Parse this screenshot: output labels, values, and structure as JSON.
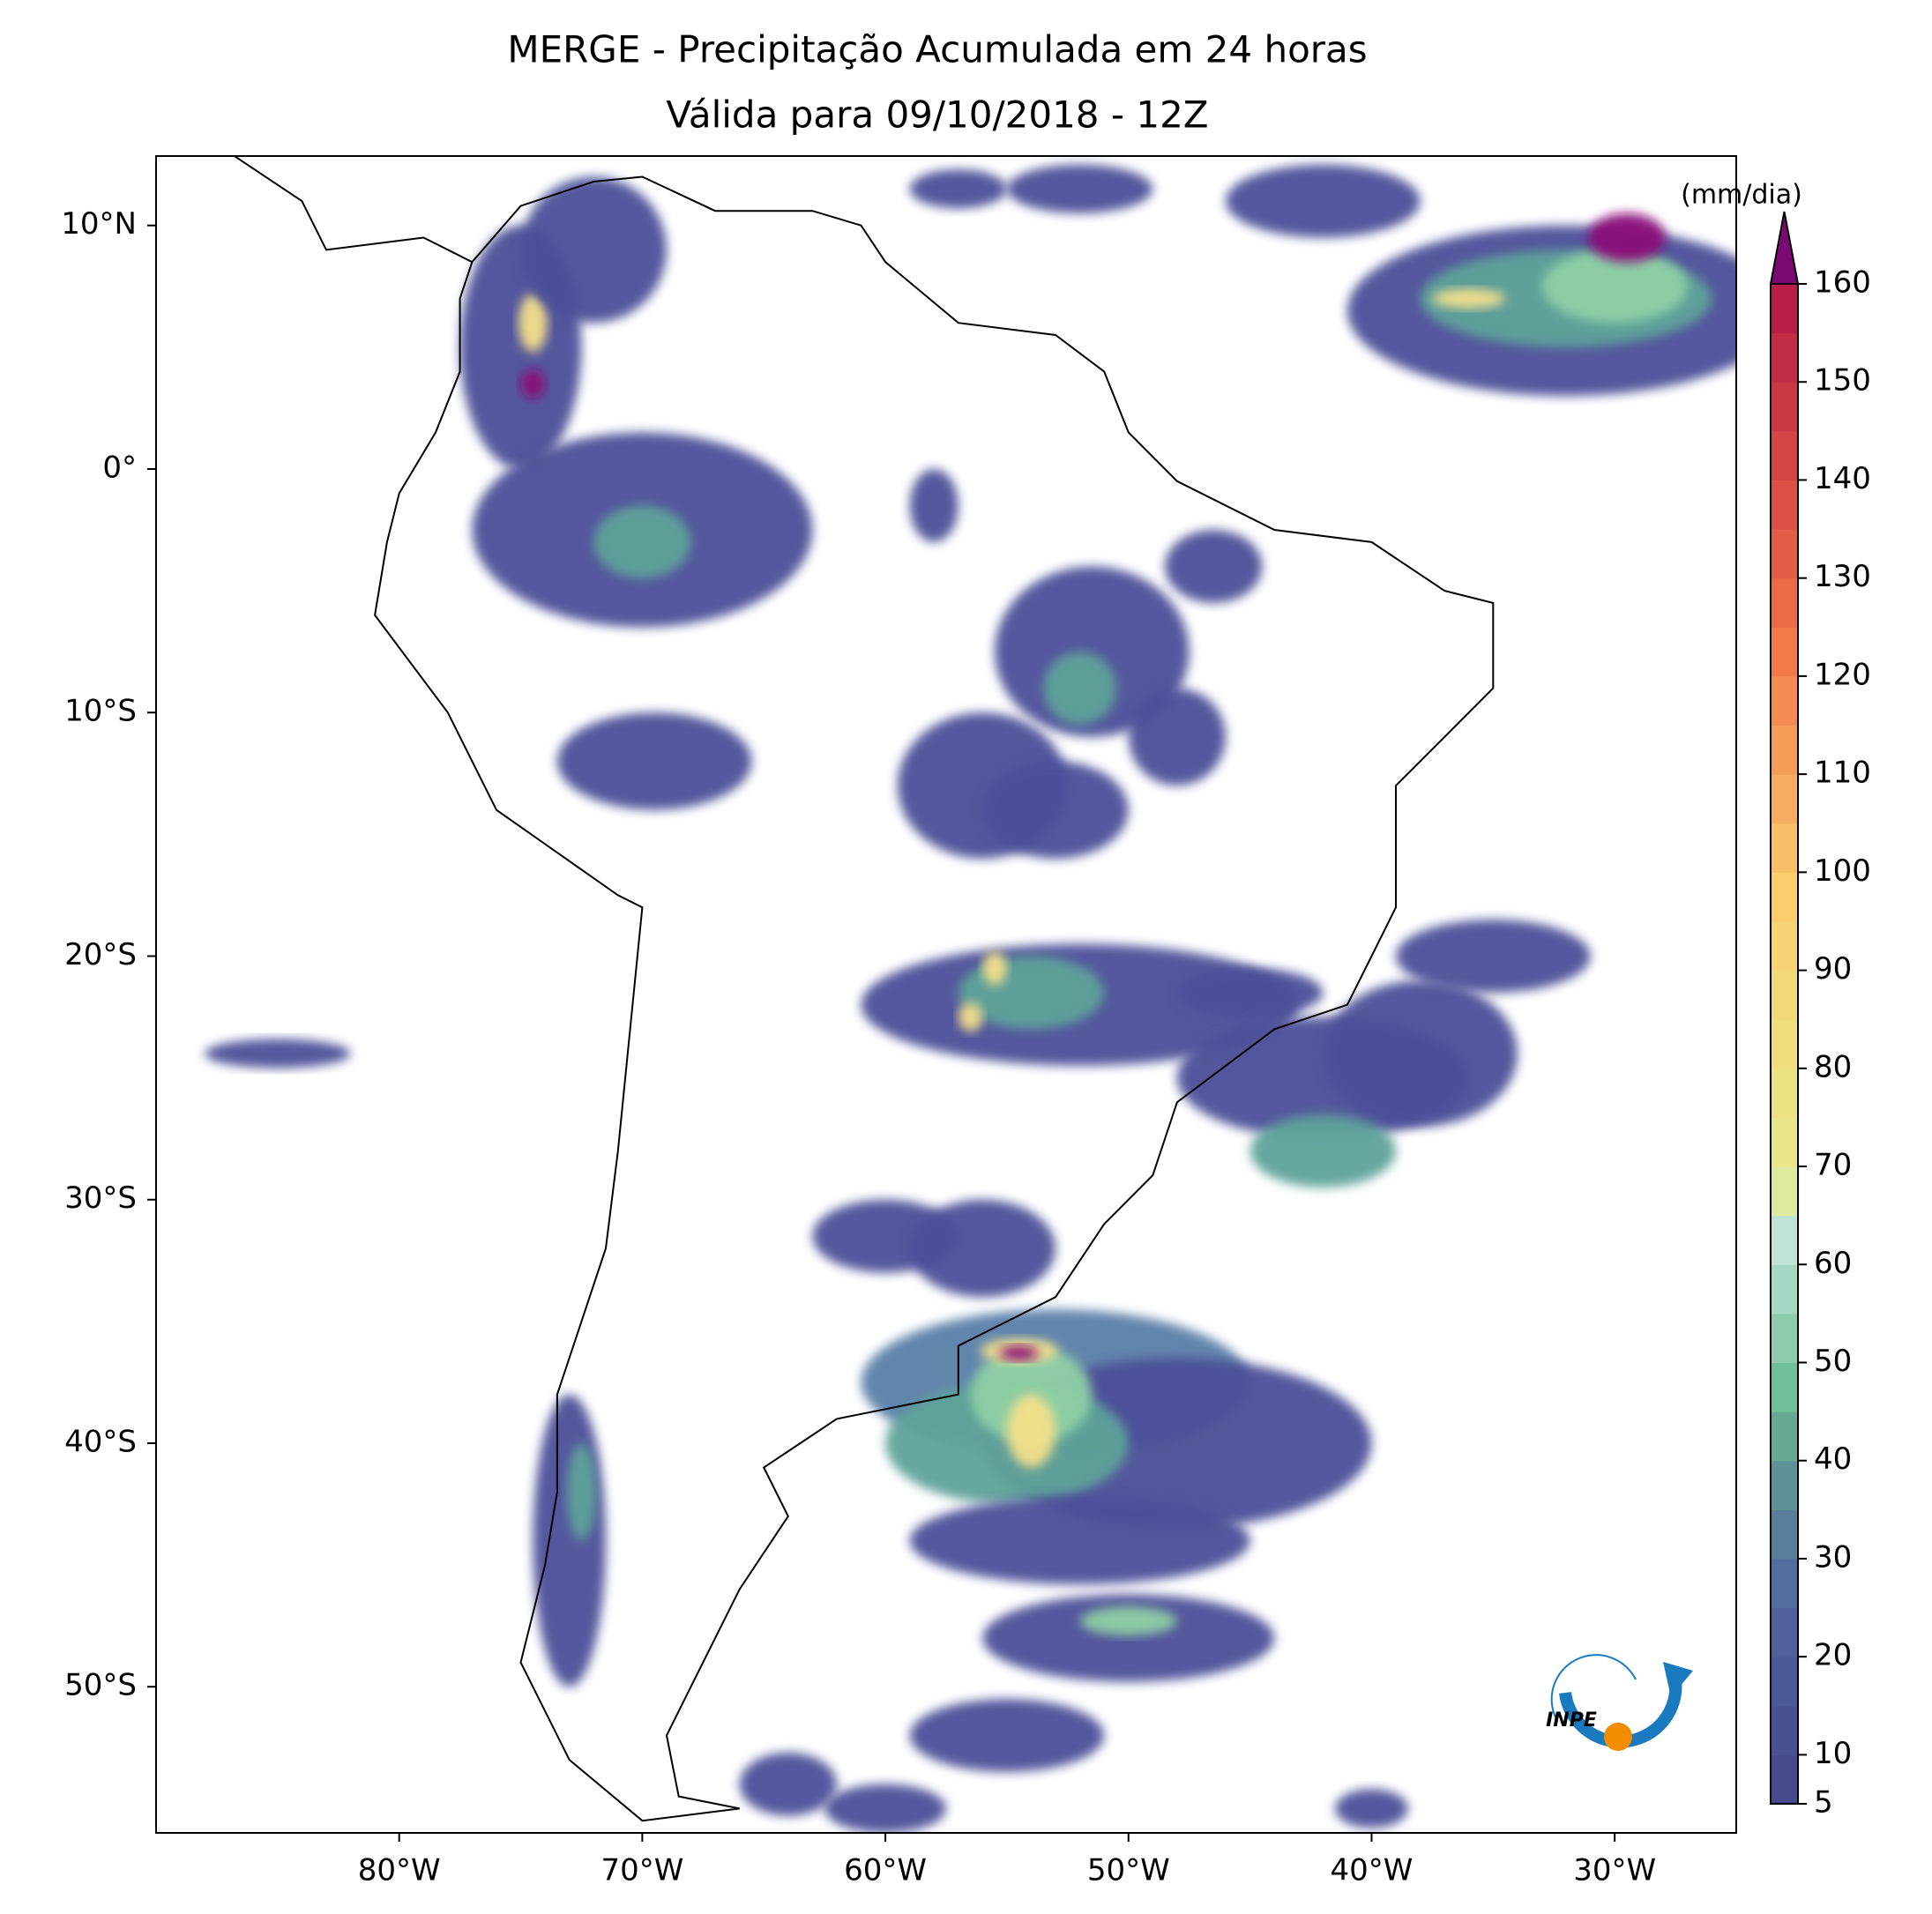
{
  "title": [
    "MERGE - Precipitação Acumulada em 24 horas",
    "Válida para 09/10/2018 - 12Z"
  ],
  "map": {
    "xlim": [
      -90,
      -25
    ],
    "ylim": [
      -56,
      12.85
    ],
    "xticks": [
      {
        "value": -80,
        "label": "80°W"
      },
      {
        "value": -70,
        "label": "70°W"
      },
      {
        "value": -60,
        "label": "60°W"
      },
      {
        "value": -50,
        "label": "50°W"
      },
      {
        "value": -40,
        "label": "40°W"
      },
      {
        "value": -30,
        "label": "30°W"
      }
    ],
    "yticks": [
      {
        "value": 10,
        "label": "10°N"
      },
      {
        "value": 0,
        "label": "0°"
      },
      {
        "value": -10,
        "label": "10°S"
      },
      {
        "value": -20,
        "label": "20°S"
      },
      {
        "value": -30,
        "label": "30°S"
      },
      {
        "value": -40,
        "label": "40°S"
      },
      {
        "value": -50,
        "label": "50°S"
      }
    ]
  },
  "colorbar": {
    "unit": "(mm/dia)",
    "ylim": [
      5,
      160
    ],
    "ticks": [
      5,
      10,
      20,
      30,
      40,
      50,
      60,
      70,
      80,
      90,
      100,
      110,
      120,
      130,
      140,
      150,
      160
    ]
  },
  "logo": "INPE"
}
